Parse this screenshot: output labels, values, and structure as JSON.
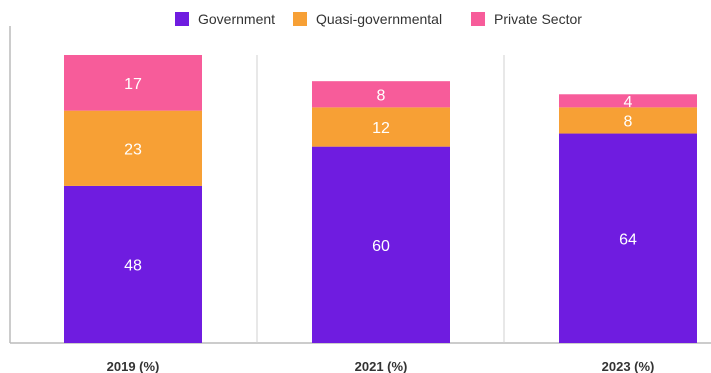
{
  "chart_data": {
    "type": "bar",
    "stacked": true,
    "categories": [
      "2019 (%)",
      "2021 (%)",
      "2023 (%)"
    ],
    "series": [
      {
        "name": "Government",
        "values": [
          48,
          60,
          64
        ],
        "color": "#6f1ce0"
      },
      {
        "name": "Quasi-governmental",
        "values": [
          23,
          12,
          8
        ],
        "color": "#f7a035"
      },
      {
        "name": "Private Sector",
        "values": [
          17,
          8,
          4
        ],
        "color": "#f75c9a"
      }
    ],
    "ylim": [
      0,
      88
    ],
    "legend_position": "top",
    "grid": "vertical separators between categories"
  }
}
